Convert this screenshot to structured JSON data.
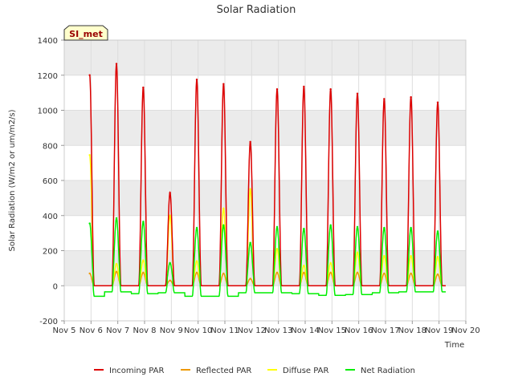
{
  "chart_data": {
    "type": "line",
    "title": "Solar Radiation",
    "xlabel": "Time",
    "ylabel": "Solar Radiation (W/m2 or um/m2/s)",
    "xlim": [
      5,
      20
    ],
    "ylim": [
      -200,
      1400
    ],
    "x_tick_labels": [
      "Nov 5",
      "Nov 6",
      "Nov 7",
      "Nov 8",
      "Nov 9",
      "Nov 10",
      "Nov 11",
      "Nov 12",
      "Nov 13",
      "Nov 14",
      "Nov 15",
      "Nov 16",
      "Nov 17",
      "Nov 18",
      "Nov 19",
      "Nov 20"
    ],
    "y_ticks": [
      -200,
      0,
      200,
      400,
      600,
      800,
      1000,
      1200,
      1400
    ],
    "annotation": "SI_met",
    "colors": {
      "incoming": "#dd0000",
      "reflected": "#ee9900",
      "diffuse": "#ffff00",
      "net": "#00ee00",
      "band": "#ebebeb",
      "grid": "#dddddd"
    },
    "series": [
      {
        "key": "incoming",
        "name": "Incoming PAR",
        "daily_peak": {
          "day": [
            6,
            7,
            8,
            9,
            10,
            11,
            12,
            13,
            14,
            15,
            16,
            17,
            18,
            19
          ],
          "value": [
            1200,
            1265,
            1130,
            530,
            1175,
            1150,
            820,
            1120,
            1135,
            1120,
            1095,
            1065,
            1075,
            1045
          ]
        }
      },
      {
        "key": "reflected",
        "name": "Reflected PAR",
        "daily_peak": {
          "day": [
            6,
            7,
            8,
            9,
            10,
            11,
            12,
            13,
            14,
            15,
            16,
            17,
            18,
            19
          ],
          "value": [
            70,
            80,
            75,
            30,
            75,
            70,
            40,
            75,
            75,
            75,
            75,
            70,
            70,
            65
          ]
        }
      },
      {
        "key": "diffuse",
        "name": "Diffuse PAR",
        "daily_peak": {
          "day": [
            6,
            7,
            8,
            9,
            10,
            11,
            12,
            13,
            14,
            15,
            16,
            17,
            18,
            19
          ],
          "value": [
            745,
            125,
            145,
            400,
            140,
            440,
            550,
            210,
            115,
            130,
            190,
            170,
            170,
            165
          ]
        }
      },
      {
        "key": "net",
        "name": "Net Radiation",
        "daily_peak": {
          "day": [
            6,
            7,
            8,
            9,
            10,
            11,
            12,
            13,
            14,
            15,
            16,
            17,
            18,
            19
          ],
          "value": [
            355,
            385,
            365,
            130,
            330,
            345,
            245,
            335,
            325,
            345,
            335,
            330,
            330,
            310
          ]
        },
        "night_value": {
          "day": [
            6,
            7,
            8,
            9,
            10,
            11,
            12,
            13,
            14,
            15,
            16,
            17,
            18,
            19,
            20
          ],
          "value": [
            -60,
            -35,
            -45,
            -40,
            -60,
            -60,
            -40,
            -40,
            -45,
            -55,
            -50,
            -40,
            -35,
            -35,
            -60
          ]
        }
      }
    ]
  }
}
